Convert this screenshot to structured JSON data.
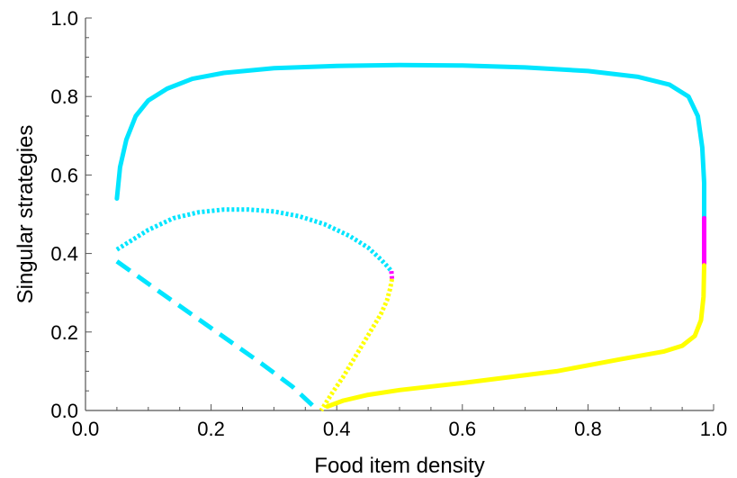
{
  "chart_data": {
    "type": "line",
    "title": "",
    "xlabel": "Food item density",
    "ylabel": "Singular strategies",
    "xlim": [
      0.0,
      1.0
    ],
    "ylim": [
      0.0,
      1.0
    ],
    "grid": false,
    "legend": "none",
    "xticks": [
      "0.0",
      "0.2",
      "0.4",
      "0.6",
      "0.8",
      "1.0"
    ],
    "yticks": [
      "0.0",
      "0.2",
      "0.4",
      "0.6",
      "0.8",
      "1.0"
    ],
    "colors": {
      "cyan": "#00e5ff",
      "magenta": "#ff00ff",
      "yellow": "#ffff00",
      "axis": "#555555"
    },
    "series": [
      {
        "style": "solid",
        "color": "cyan",
        "x": [
          0.05,
          0.055,
          0.065,
          0.08,
          0.1,
          0.13,
          0.17,
          0.22,
          0.3,
          0.4,
          0.5,
          0.6,
          0.7,
          0.8,
          0.88,
          0.93,
          0.96,
          0.975,
          0.982,
          0.985,
          0.985
        ],
        "y": [
          0.54,
          0.62,
          0.69,
          0.75,
          0.79,
          0.82,
          0.845,
          0.86,
          0.872,
          0.878,
          0.88,
          0.879,
          0.874,
          0.865,
          0.85,
          0.83,
          0.8,
          0.75,
          0.67,
          0.58,
          0.49
        ]
      },
      {
        "style": "solid",
        "color": "magenta",
        "x": [
          0.985,
          0.985
        ],
        "y": [
          0.49,
          0.37
        ]
      },
      {
        "style": "solid",
        "color": "yellow",
        "x": [
          0.985,
          0.984,
          0.98,
          0.97,
          0.95,
          0.92,
          0.85,
          0.75,
          0.6,
          0.5,
          0.45,
          0.41,
          0.385
        ],
        "y": [
          0.37,
          0.29,
          0.23,
          0.19,
          0.165,
          0.15,
          0.13,
          0.1,
          0.07,
          0.052,
          0.04,
          0.025,
          0.01
        ]
      },
      {
        "style": "dotted",
        "color": "cyan",
        "x": [
          0.05,
          0.07,
          0.1,
          0.14,
          0.18,
          0.22,
          0.26,
          0.3,
          0.34,
          0.38,
          0.42,
          0.45,
          0.47,
          0.482,
          0.487
        ],
        "y": [
          0.41,
          0.43,
          0.46,
          0.49,
          0.505,
          0.512,
          0.512,
          0.507,
          0.495,
          0.475,
          0.445,
          0.415,
          0.385,
          0.365,
          0.355
        ]
      },
      {
        "style": "dotted",
        "color": "magenta",
        "x": [
          0.487,
          0.488
        ],
        "y": [
          0.355,
          0.335
        ]
      },
      {
        "style": "dotted",
        "color": "yellow",
        "x": [
          0.488,
          0.485,
          0.48,
          0.47,
          0.455,
          0.44,
          0.425,
          0.41,
          0.395,
          0.385,
          0.375
        ],
        "y": [
          0.335,
          0.31,
          0.28,
          0.245,
          0.205,
          0.165,
          0.125,
          0.085,
          0.05,
          0.025,
          0.0
        ]
      },
      {
        "style": "dashed",
        "color": "cyan",
        "x": [
          0.05,
          0.12,
          0.2,
          0.28,
          0.33,
          0.37
        ],
        "y": [
          0.38,
          0.3,
          0.21,
          0.12,
          0.06,
          0.0
        ]
      }
    ]
  }
}
